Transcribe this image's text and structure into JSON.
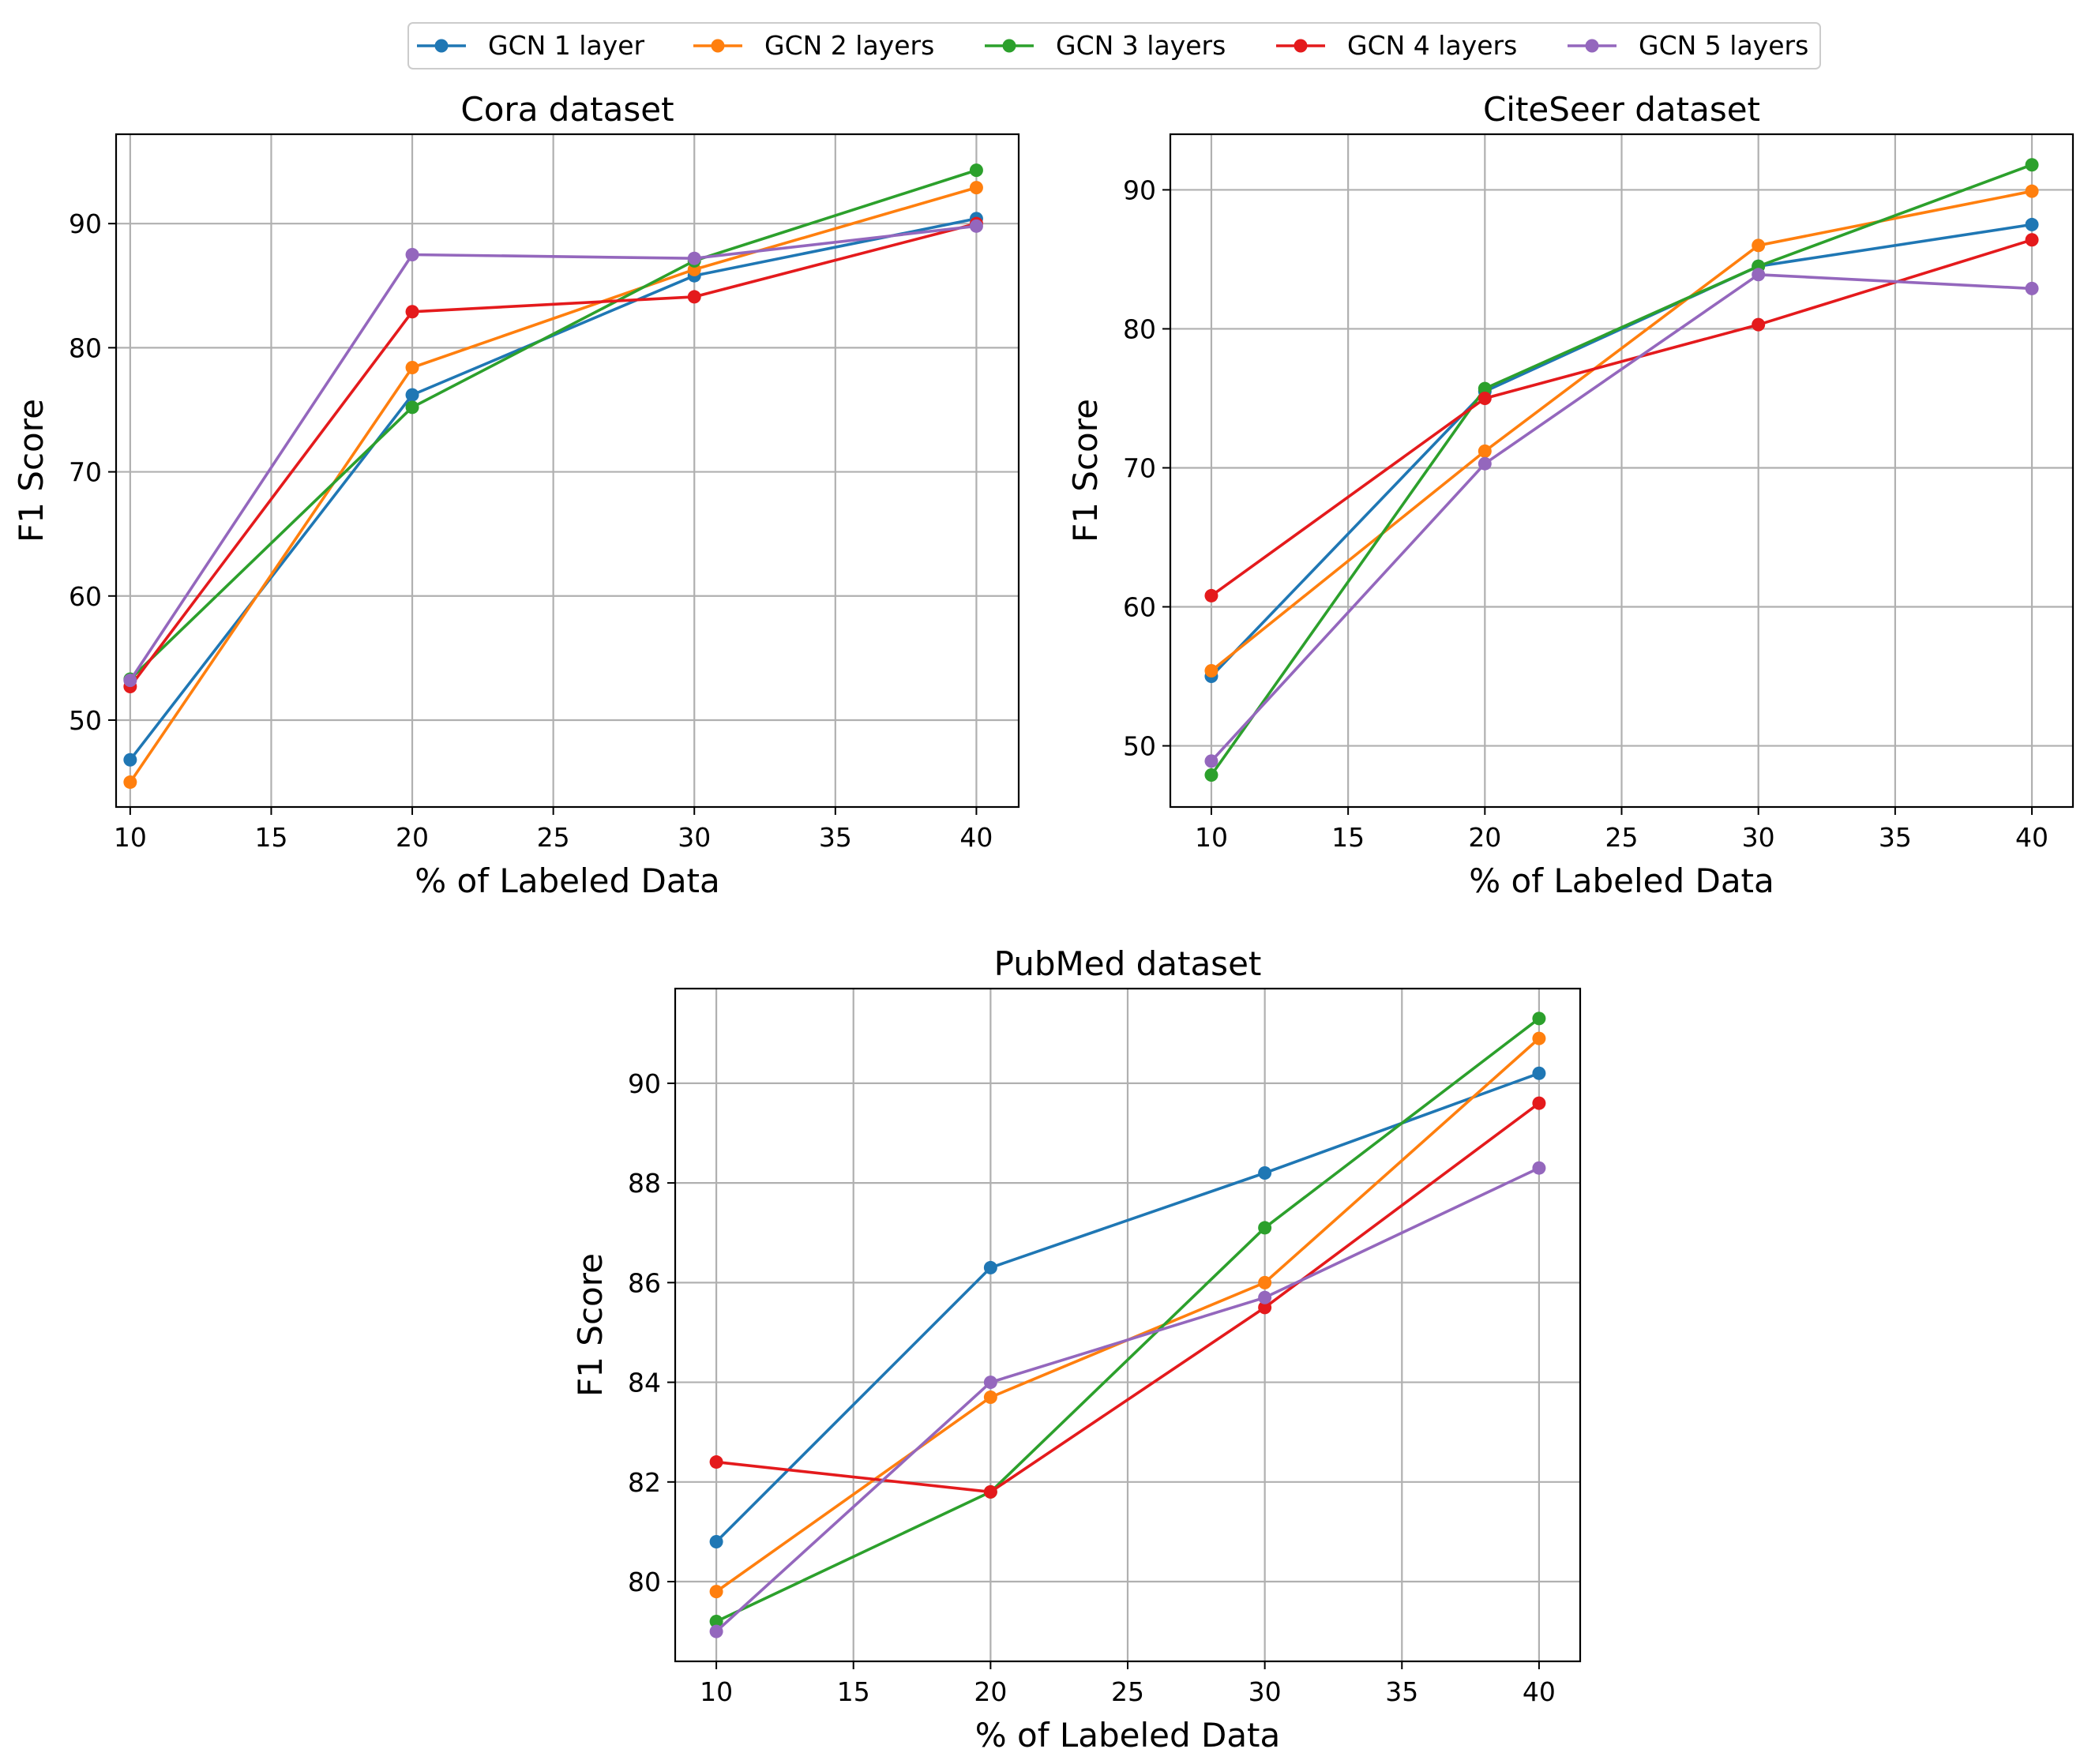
{
  "colors": {
    "GCN 1 layer": "#1f77b4",
    "GCN 2 layers": "#ff7f0e",
    "GCN 3 layers": "#2ca02c",
    "GCN 4 layers": "#e41a1c",
    "GCN 5 layers": "#9467bd"
  },
  "legend": {
    "entries": [
      "GCN 1 layer",
      "GCN 2 layers",
      "GCN 3 layers",
      "GCN 4 layers",
      "GCN 5 layers"
    ],
    "placement": "top-center"
  },
  "chart_data": [
    {
      "type": "line",
      "title": "Cora dataset",
      "xlabel": "% of Labeled Data",
      "ylabel": "F1 Score",
      "x": [
        10,
        20,
        30,
        40
      ],
      "xlim": [
        9.5,
        41.5
      ],
      "ylim": [
        43,
        97.2
      ],
      "xticks": [
        10,
        15,
        20,
        25,
        30,
        35,
        40
      ],
      "yticks": [
        50,
        60,
        70,
        80,
        90
      ],
      "grid": true,
      "series": [
        {
          "name": "GCN 1 layer",
          "values": [
            46.8,
            76.2,
            85.8,
            90.4
          ]
        },
        {
          "name": "GCN 2 layers",
          "values": [
            45.0,
            78.4,
            86.3,
            92.9
          ]
        },
        {
          "name": "GCN 3 layers",
          "values": [
            53.3,
            75.2,
            87.0,
            94.3
          ]
        },
        {
          "name": "GCN 4 layers",
          "values": [
            52.7,
            82.9,
            84.1,
            90.0
          ]
        },
        {
          "name": "GCN 5 layers",
          "values": [
            53.2,
            87.5,
            87.2,
            89.8
          ]
        }
      ]
    },
    {
      "type": "line",
      "title": "CiteSeer dataset",
      "xlabel": "% of Labeled Data",
      "ylabel": "F1 Score",
      "x": [
        10,
        20,
        30,
        40
      ],
      "xlim": [
        8.5,
        41.5
      ],
      "ylim": [
        45.6,
        94.0
      ],
      "xticks": [
        10,
        15,
        20,
        25,
        30,
        35,
        40
      ],
      "yticks": [
        50,
        60,
        70,
        80,
        90
      ],
      "grid": true,
      "series": [
        {
          "name": "GCN 1 layer",
          "values": [
            55.0,
            75.5,
            84.5,
            87.5
          ]
        },
        {
          "name": "GCN 2 layers",
          "values": [
            55.4,
            71.2,
            86.0,
            89.9
          ]
        },
        {
          "name": "GCN 3 layers",
          "values": [
            47.9,
            75.7,
            84.5,
            91.8
          ]
        },
        {
          "name": "GCN 4 layers",
          "values": [
            60.8,
            75.0,
            80.3,
            86.4
          ]
        },
        {
          "name": "GCN 5 layers",
          "values": [
            48.9,
            70.3,
            83.9,
            82.9
          ]
        }
      ]
    },
    {
      "type": "line",
      "title": "PubMed dataset",
      "xlabel": "% of Labeled Data",
      "ylabel": "F1 Score",
      "x": [
        10,
        20,
        30,
        40
      ],
      "xlim": [
        8.5,
        41.5
      ],
      "ylim": [
        78.4,
        91.9
      ],
      "xticks": [
        10,
        15,
        20,
        25,
        30,
        35,
        40
      ],
      "yticks": [
        80,
        82,
        84,
        86,
        88,
        90
      ],
      "grid": true,
      "series": [
        {
          "name": "GCN 1 layer",
          "values": [
            80.8,
            86.3,
            88.2,
            90.2
          ]
        },
        {
          "name": "GCN 2 layers",
          "values": [
            79.8,
            83.7,
            86.0,
            90.9
          ]
        },
        {
          "name": "GCN 3 layers",
          "values": [
            79.2,
            81.8,
            87.1,
            91.3
          ]
        },
        {
          "name": "GCN 4 layers",
          "values": [
            82.4,
            81.8,
            85.5,
            89.6
          ]
        },
        {
          "name": "GCN 5 layers",
          "values": [
            79.0,
            84.0,
            85.7,
            88.3
          ]
        }
      ]
    }
  ]
}
